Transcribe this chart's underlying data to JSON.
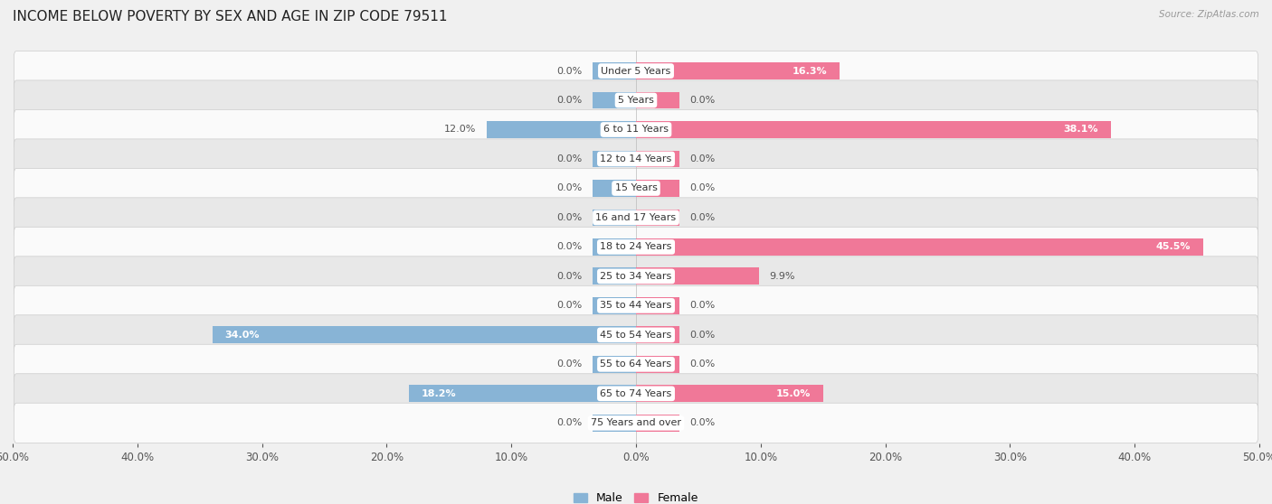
{
  "title": "INCOME BELOW POVERTY BY SEX AND AGE IN ZIP CODE 79511",
  "source": "Source: ZipAtlas.com",
  "categories": [
    "Under 5 Years",
    "5 Years",
    "6 to 11 Years",
    "12 to 14 Years",
    "15 Years",
    "16 and 17 Years",
    "18 to 24 Years",
    "25 to 34 Years",
    "35 to 44 Years",
    "45 to 54 Years",
    "55 to 64 Years",
    "65 to 74 Years",
    "75 Years and over"
  ],
  "male_values": [
    0.0,
    0.0,
    12.0,
    0.0,
    0.0,
    0.0,
    0.0,
    0.0,
    0.0,
    34.0,
    0.0,
    18.2,
    0.0
  ],
  "female_values": [
    16.3,
    0.0,
    38.1,
    0.0,
    0.0,
    0.0,
    45.5,
    9.9,
    0.0,
    0.0,
    0.0,
    15.0,
    0.0
  ],
  "male_color": "#88b4d6",
  "female_color": "#f07898",
  "male_label": "Male",
  "female_label": "Female",
  "xlim": 50.0,
  "min_bar": 3.5,
  "bar_height": 0.58,
  "background_color": "#f0f0f0",
  "row_bg_light": "#fafafa",
  "row_bg_dark": "#e8e8e8",
  "title_fontsize": 11,
  "label_fontsize": 8,
  "tick_fontsize": 8.5,
  "source_fontsize": 7.5,
  "value_fontsize": 8
}
